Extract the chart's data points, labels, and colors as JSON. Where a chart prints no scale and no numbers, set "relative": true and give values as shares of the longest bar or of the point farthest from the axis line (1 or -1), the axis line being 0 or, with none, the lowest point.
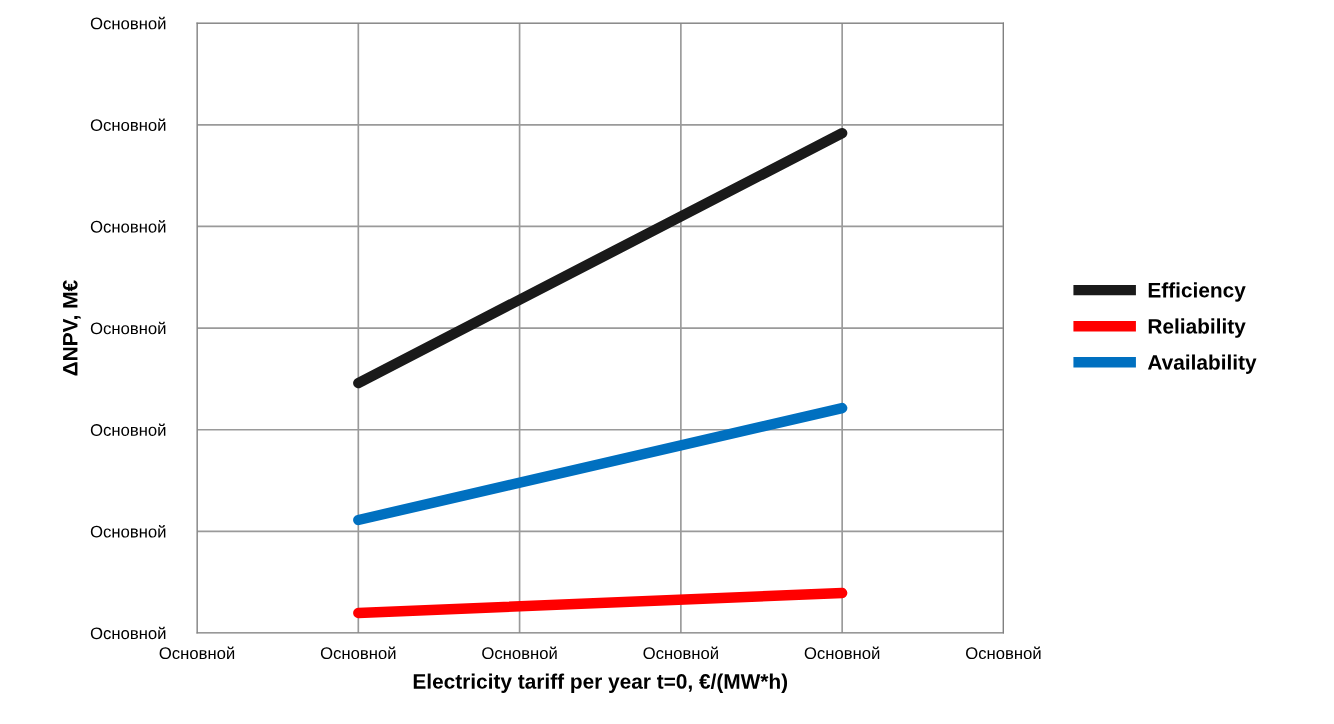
{
  "chart_data": {
    "type": "line",
    "relative": true,
    "xlabel": "Electricity tariff per year t=0, €/(MW*h)",
    "ylabel": "ΔNPV, M€",
    "categories": [
      "Основной",
      "Основной",
      "Основной",
      "Основной",
      "Основной",
      "Основной"
    ],
    "series": [
      {
        "name": "Efficiency",
        "color": "#1a1a1a",
        "values": [
          null,
          0.5,
          null,
          null,
          1.0,
          null
        ]
      },
      {
        "name": "Reliability",
        "color": "#ff0000",
        "values": [
          null,
          0.04,
          null,
          null,
          0.08,
          null
        ]
      },
      {
        "name": "Availability",
        "color": "#0070c0",
        "values": [
          null,
          0.226,
          null,
          null,
          0.45,
          null
        ]
      }
    ],
    "annotations": [
      "Основной",
      "Основной",
      "Основной",
      "Основной",
      "Основной",
      "Основной",
      "Основной"
    ],
    "grid": true,
    "legend": "right",
    "marker": "none",
    "line_style": "solid"
  }
}
